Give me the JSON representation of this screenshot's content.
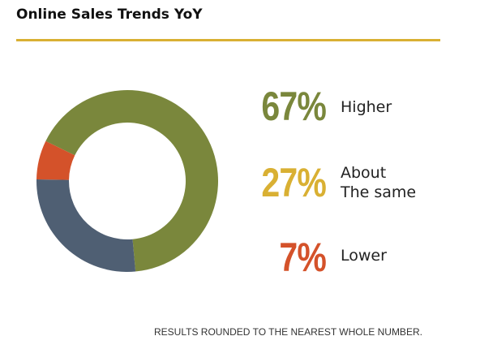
{
  "chart_data": {
    "type": "pie",
    "title": "Online Sales Trends YoY",
    "categories": [
      "Higher",
      "About The same",
      "Lower"
    ],
    "values": [
      67,
      27,
      7
    ],
    "value_labels": [
      "67%",
      "27%",
      "7%"
    ],
    "label_lines": [
      [
        "Higher"
      ],
      [
        "About",
        "The same"
      ],
      [
        "Lower"
      ]
    ],
    "label_colors": [
      "#7a873c",
      "#d9b033",
      "#d4522a"
    ],
    "slice_colors": [
      "#7a873c",
      "#4f5f73",
      "#d4522a"
    ],
    "donut": true,
    "footnote": "RESULTS ROUNDED TO THE NEAREST WHOLE NUMBER."
  }
}
